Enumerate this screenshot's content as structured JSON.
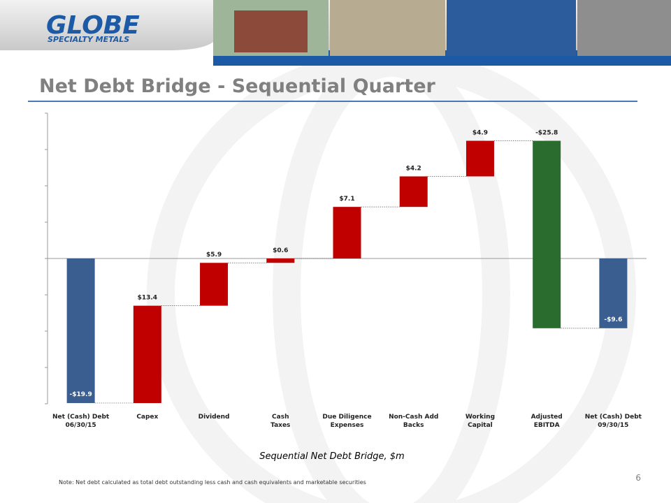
{
  "header": {
    "logo_line1": "GLOBE",
    "logo_line2": "SPECIALTY METALS"
  },
  "title": "Net Debt Bridge - Sequential Quarter",
  "chart_data": {
    "type": "waterfall",
    "caption": "Sequential Net Debt Bridge, $m",
    "categories": [
      "Net (Cash) Debt\n06/30/15",
      "Capex",
      "Dividend",
      "Cash\nTaxes",
      "Due Diligence\nExpenses",
      "Non-Cash Add Backs",
      "Working\nCapital",
      "Adjusted\nEBITDA",
      "Net (Cash) Debt\n09/30/15"
    ],
    "values": [
      -19.9,
      13.4,
      5.9,
      0.6,
      7.1,
      4.2,
      4.9,
      -25.8,
      -9.6
    ],
    "value_labels": [
      "-$19.9",
      "$13.4",
      "$5.9",
      "$0.6",
      "$7.1",
      "$4.2",
      "$4.9",
      "-$25.8",
      "-$9.6"
    ],
    "colors": [
      "#3b5e91",
      "#c00000",
      "#c00000",
      "#c00000",
      "#c00000",
      "#c00000",
      "#c00000",
      "#2a6b2e",
      "#3b5e91"
    ],
    "ylim": [
      -20,
      20
    ],
    "yticks": [
      -20,
      -15,
      -10,
      -5,
      0,
      5,
      10,
      15,
      20
    ]
  },
  "footer": {
    "note": "Note: Net debt calculated as total debt outstanding less cash and cash equivalents and marketable securities",
    "page_number": "6"
  }
}
